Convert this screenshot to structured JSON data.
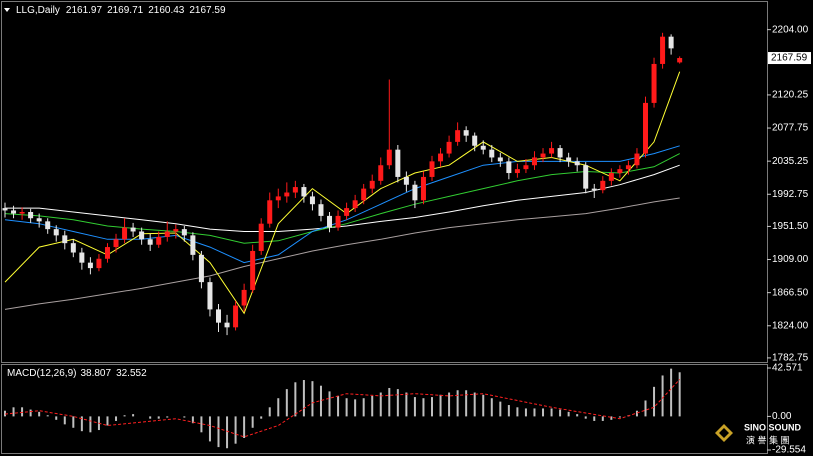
{
  "chart_data": [
    {
      "type": "candlestick",
      "title": "LLG,Daily",
      "open": [
        1975,
        1972,
        1968,
        1970,
        1962,
        1958,
        1948,
        1940,
        1930,
        1918,
        1905,
        1898,
        1910,
        1925,
        1935,
        1950,
        1945,
        1935,
        1928,
        1938,
        1945,
        1948,
        1940,
        1915,
        1880,
        1845,
        1828,
        1822,
        1850,
        1870,
        1920,
        1955,
        1985,
        1990,
        1995,
        2002,
        1990,
        1980,
        1965,
        1950,
        1965,
        1975,
        1985,
        2000,
        2010,
        2030,
        2050,
        2015,
        2005,
        1985,
        2015,
        2035,
        2045,
        2060,
        2075,
        2068,
        2055,
        2050,
        2040,
        2035,
        2020,
        2025,
        2030,
        2040,
        2045,
        2052,
        2040,
        2035,
        2030,
        2000,
        1998,
        2010,
        2020,
        2025,
        2030,
        2045,
        2110,
        2160,
        2195,
        2161.97
      ],
      "high": [
        1982,
        1978,
        1976,
        1974,
        1968,
        1962,
        1953,
        1946,
        1935,
        1924,
        1912,
        1916,
        1930,
        1942,
        1962,
        1956,
        1950,
        1942,
        1945,
        1958,
        1954,
        1952,
        1944,
        1920,
        1886,
        1852,
        1838,
        1856,
        1878,
        1928,
        1962,
        1995,
        2000,
        2008,
        2010,
        2006,
        1996,
        1986,
        1970,
        1972,
        1982,
        1992,
        2006,
        2018,
        2040,
        2140,
        2056,
        2022,
        2010,
        2022,
        2042,
        2052,
        2068,
        2085,
        2080,
        2072,
        2062,
        2056,
        2046,
        2040,
        2032,
        2038,
        2048,
        2052,
        2060,
        2056,
        2046,
        2040,
        2034,
        2006,
        2016,
        2026,
        2030,
        2036,
        2052,
        2118,
        2168,
        2200,
        2198,
        2169.71
      ],
      "low": [
        1963,
        1962,
        1960,
        1956,
        1950,
        1942,
        1932,
        1922,
        1912,
        1896,
        1890,
        1894,
        1905,
        1918,
        1930,
        1938,
        1928,
        1920,
        1924,
        1932,
        1936,
        1932,
        1908,
        1872,
        1836,
        1816,
        1812,
        1818,
        1842,
        1866,
        1915,
        1950,
        1975,
        1982,
        1988,
        1982,
        1972,
        1958,
        1944,
        1946,
        1960,
        1970,
        1980,
        1994,
        2005,
        2025,
        2008,
        1996,
        1975,
        1980,
        2010,
        2028,
        2040,
        2055,
        2060,
        2048,
        2044,
        2034,
        2028,
        2012,
        2014,
        2020,
        2024,
        2034,
        2040,
        2034,
        2028,
        2022,
        1994,
        1988,
        1994,
        2004,
        2014,
        2018,
        2026,
        2040,
        2104,
        2154,
        2172,
        2160.43
      ],
      "close": [
        1972,
        1968,
        1970,
        1962,
        1958,
        1948,
        1940,
        1930,
        1918,
        1905,
        1898,
        1910,
        1925,
        1935,
        1950,
        1945,
        1935,
        1928,
        1938,
        1945,
        1948,
        1940,
        1915,
        1880,
        1845,
        1828,
        1822,
        1850,
        1870,
        1920,
        1955,
        1985,
        1990,
        1995,
        2002,
        1990,
        1980,
        1965,
        1950,
        1965,
        1975,
        1985,
        2000,
        2010,
        2030,
        2050,
        2015,
        2005,
        1985,
        2015,
        2035,
        2045,
        2060,
        2075,
        2068,
        2055,
        2050,
        2040,
        2035,
        2020,
        2025,
        2030,
        2040,
        2045,
        2052,
        2040,
        2035,
        2030,
        2000,
        1998,
        2010,
        2020,
        2025,
        2030,
        2045,
        2110,
        2160,
        2195,
        2180,
        2167.59
      ],
      "up_color": "#ff1a1a",
      "down_color": "#e6e6e6",
      "series": [
        {
          "color": "#a9a0a0",
          "x": [
            0,
            4,
            8,
            12,
            16,
            20,
            24,
            28,
            32,
            36,
            40,
            44,
            48,
            52,
            56,
            60,
            64,
            68,
            72,
            76,
            79
          ],
          "values": [
            1845,
            1852,
            1858,
            1865,
            1872,
            1880,
            1888,
            1900,
            1910,
            1920,
            1928,
            1935,
            1943,
            1950,
            1955,
            1960,
            1964,
            1968,
            1975,
            1983,
            1988
          ]
        },
        {
          "color": "#ffffff",
          "x": [
            0,
            4,
            8,
            12,
            16,
            20,
            24,
            28,
            32,
            36,
            40,
            44,
            48,
            52,
            56,
            60,
            64,
            68,
            72,
            76,
            79
          ],
          "values": [
            1975,
            1975,
            1970,
            1965,
            1960,
            1955,
            1948,
            1945,
            1945,
            1948,
            1952,
            1958,
            1963,
            1970,
            1978,
            1985,
            1990,
            1995,
            2005,
            2018,
            2030
          ]
        },
        {
          "color": "#32cd32",
          "x": [
            0,
            4,
            8,
            12,
            16,
            20,
            24,
            28,
            32,
            36,
            40,
            44,
            48,
            52,
            56,
            60,
            64,
            68,
            72,
            76,
            79
          ],
          "values": [
            1968,
            1965,
            1960,
            1952,
            1948,
            1945,
            1940,
            1930,
            1933,
            1945,
            1955,
            1968,
            1980,
            1990,
            2000,
            2010,
            2018,
            2022,
            2020,
            2028,
            2045
          ]
        },
        {
          "color": "#1e90ff",
          "x": [
            0,
            4,
            8,
            12,
            16,
            20,
            24,
            28,
            32,
            36,
            40,
            44,
            48,
            52,
            56,
            60,
            64,
            68,
            72,
            76,
            79
          ],
          "values": [
            1960,
            1955,
            1945,
            1935,
            1935,
            1940,
            1925,
            1905,
            1915,
            1945,
            1960,
            1980,
            2000,
            2015,
            2030,
            2035,
            2035,
            2035,
            2035,
            2045,
            2055
          ]
        },
        {
          "color": "#ffff33",
          "x": [
            0,
            4,
            8,
            12,
            16,
            20,
            24,
            28,
            32,
            36,
            40,
            44,
            48,
            52,
            56,
            60,
            64,
            68,
            72,
            76,
            79
          ],
          "values": [
            1880,
            1925,
            1935,
            1915,
            1942,
            1943,
            1905,
            1840,
            1955,
            2000,
            1968,
            2000,
            2020,
            2030,
            2060,
            2035,
            2040,
            2030,
            2010,
            2060,
            2150
          ]
        }
      ],
      "ylim": [
        1777.5,
        2239.5
      ],
      "yticks": [
        {
          "value": 2204,
          "label": "2204.00"
        },
        {
          "value": 2120.25,
          "label": "2120.25"
        },
        {
          "value": 2077.75,
          "label": "2077.75"
        },
        {
          "value": 2035.25,
          "label": "2035.25"
        },
        {
          "value": 1992.75,
          "label": "1992.75"
        },
        {
          "value": 1951.5,
          "label": "1951.50"
        },
        {
          "value": 1909,
          "label": "1909.00"
        },
        {
          "value": 1866.5,
          "label": "1866.50"
        },
        {
          "value": 1824,
          "label": "1824.00"
        },
        {
          "value": 1782.75,
          "label": "1782.75"
        }
      ]
    },
    {
      "type": "bar",
      "title": "MACD(12,26,9)",
      "color": "#c0c0c0",
      "values": [
        5,
        8,
        8,
        6,
        4,
        1,
        -3,
        -7,
        -10,
        -13,
        -14,
        -12,
        -8,
        -4,
        1,
        2,
        0,
        -2,
        -2,
        -1,
        0,
        -1,
        -6,
        -14,
        -22,
        -27,
        -28,
        -24,
        -19,
        -10,
        -2,
        8,
        16,
        24,
        30,
        32,
        31,
        27,
        22,
        18,
        16,
        15,
        16,
        18,
        21,
        25,
        24,
        21,
        17,
        16,
        17,
        19,
        21,
        23,
        23,
        21,
        19,
        16,
        13,
        10,
        8,
        7,
        7,
        7,
        7,
        6,
        4,
        2,
        -2,
        -4,
        -4,
        -3,
        -1,
        1,
        5,
        14,
        26,
        36,
        42,
        38.807
      ],
      "signal": {
        "color": "#ff2020",
        "x": [
          0,
          4,
          8,
          12,
          16,
          20,
          24,
          28,
          32,
          36,
          40,
          44,
          48,
          52,
          56,
          60,
          64,
          68,
          72,
          76,
          79
        ],
        "values": [
          2,
          5,
          0,
          -8,
          -5,
          -2,
          -8,
          -18,
          -8,
          12,
          20,
          18,
          20,
          18,
          20,
          14,
          8,
          3,
          -2,
          8,
          32.552
        ]
      },
      "ylim": [
        -29.554,
        42.571
      ],
      "yticks": [
        42.571,
        {
          "value": 0,
          "label": "0.00"
        },
        -29.554
      ]
    }
  ],
  "watermark": {
    "name": "SINO SOUND",
    "subtitle": "演 譽 集 團"
  }
}
